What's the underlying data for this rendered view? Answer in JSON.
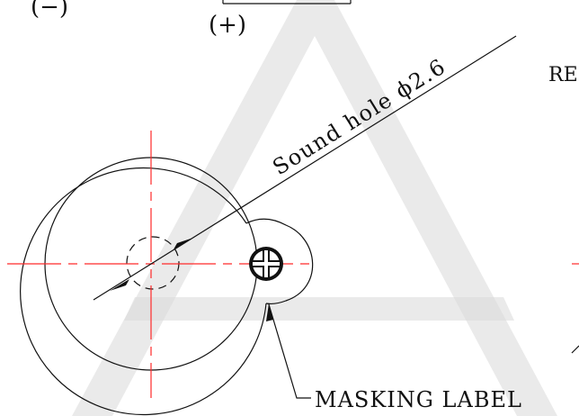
{
  "labels": {
    "minus_terminal": "(−)",
    "plus_terminal": "(+)",
    "sound_hole": "Sound hole ϕ2.6",
    "partial_ref": "RE",
    "masking_label": "MASKING  LABEL"
  },
  "colors": {
    "outline": "#111111",
    "centerline": "#ff2a2a",
    "watermark": "#d9d9d9",
    "background": "#ffffff"
  },
  "watermark": {
    "glyph": "A"
  }
}
